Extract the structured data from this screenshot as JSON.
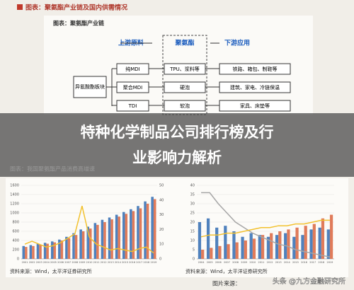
{
  "header": {
    "title": "图表：聚氨酯产业链及国内供需情况"
  },
  "diagram": {
    "title": "图表：聚氨酯产业链",
    "upstream": "上游原料",
    "core": "聚氨酯",
    "downstream": "下游应用",
    "source_block": "异氰酸酯板块",
    "rows": [
      [
        "纯MDI",
        "TPU、浆料等",
        "铁路、箱包、制鞋等"
      ],
      [
        "聚合MDI",
        "硬泡",
        "建筑、家电、冷链保温"
      ],
      [
        "TDI",
        "软泡",
        "家具、床垫等"
      ]
    ]
  },
  "banner": {
    "line1": "特种化学制品公司排行榜及行",
    "line2": "业影响力解析"
  },
  "under_title": "图表：我国聚氨酯产品消费高增速",
  "sources": [
    "资料来源：Wind，太平洋证券研究所",
    "资料来源：Wind，太平洋证券研究所"
  ],
  "footer": {
    "label": "图片来源：",
    "watermark": "头条 @九方金融研究所"
  },
  "chart_data": [
    {
      "type": "combo",
      "categories": [
        "2001",
        "2002",
        "2003",
        "2004",
        "2005",
        "2006",
        "2007",
        "2008",
        "2009",
        "2010",
        "2011",
        "2012",
        "2013",
        "2014",
        "2015",
        "2016",
        "2017",
        "2018",
        "2019"
      ],
      "series": [
        {
          "type": "bar",
          "color": "#4f81bd",
          "values": [
            280,
            300,
            330,
            350,
            380,
            420,
            480,
            560,
            640,
            700,
            780,
            850,
            900,
            960,
            1020,
            1080,
            1150,
            1250,
            1350
          ]
        },
        {
          "type": "bar",
          "color": "#e07b5a",
          "values": [
            260,
            280,
            310,
            330,
            360,
            400,
            450,
            520,
            600,
            660,
            740,
            800,
            860,
            920,
            980,
            1040,
            1100,
            1200,
            1300
          ]
        },
        {
          "type": "line",
          "axis": "y2",
          "color": "#f2c12e",
          "values": [
            10,
            12,
            10,
            8,
            9,
            11,
            14,
            17,
            36,
            15,
            10,
            8,
            6,
            7,
            6,
            5,
            7,
            8,
            4
          ]
        }
      ],
      "ylim": [
        0,
        1600
      ],
      "yticks": [
        0,
        200,
        400,
        600,
        800,
        1000,
        1200,
        1400,
        1600
      ],
      "y2lim": [
        0,
        50
      ],
      "y2ticks": [
        0,
        10,
        20,
        30,
        40,
        50
      ],
      "grid": true
    },
    {
      "type": "combo",
      "categories": [
        "2004",
        "2005",
        "2006",
        "2007",
        "2008",
        "2009",
        "2010",
        "2011",
        "2012",
        "2013",
        "2014",
        "2015",
        "2016",
        "2017",
        "2018",
        "2019"
      ],
      "series": [
        {
          "type": "bar",
          "color": "#4f81bd",
          "values": [
            20,
            22,
            17,
            18,
            15,
            12,
            14,
            13,
            12,
            13,
            14,
            12,
            13,
            16,
            17,
            16
          ]
        },
        {
          "type": "bar",
          "color": "#e07b5a",
          "values": [
            5,
            6,
            7,
            8,
            9,
            10,
            11,
            13,
            14,
            15,
            16,
            17,
            18,
            19,
            22,
            24
          ]
        },
        {
          "type": "line",
          "color": "#a6a6a6",
          "values": [
            36,
            36,
            30,
            25,
            20,
            17,
            14,
            12,
            10,
            8,
            7,
            5,
            4,
            3,
            2,
            1
          ]
        },
        {
          "type": "line",
          "color": "#f2c12e",
          "values": [
            12,
            13,
            13,
            14,
            14,
            15,
            16,
            17,
            17,
            18,
            18,
            19,
            19,
            20,
            21,
            21
          ]
        }
      ],
      "ylim": [
        0,
        40
      ],
      "yticks": [
        0,
        5,
        10,
        15,
        20,
        25,
        30,
        35,
        40
      ],
      "grid": true
    }
  ]
}
